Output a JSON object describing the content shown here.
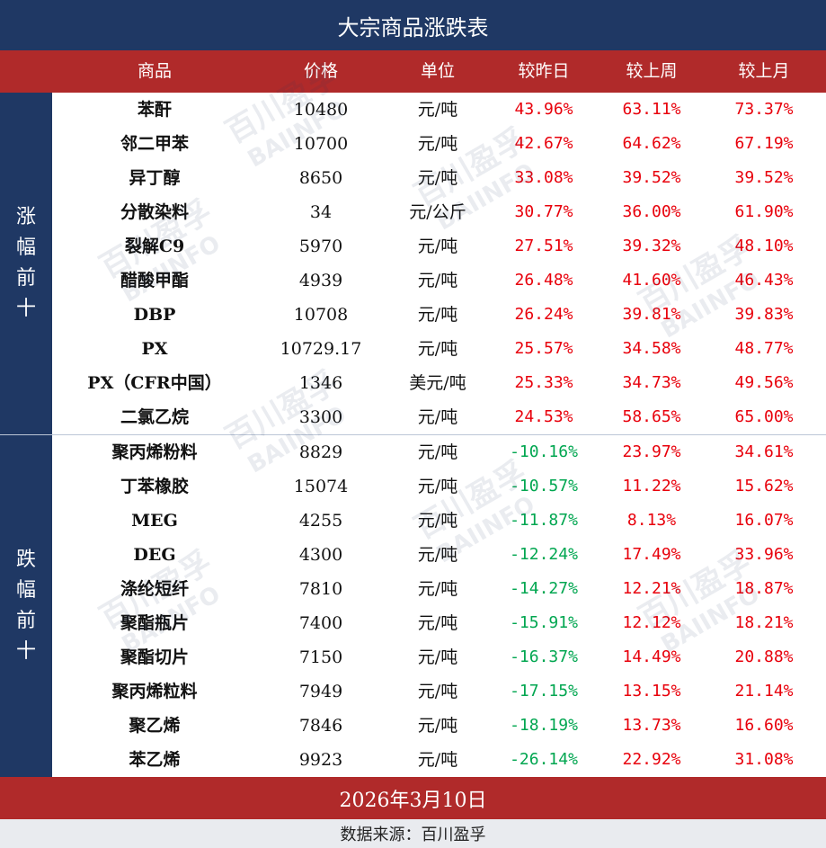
{
  "title": "大宗商品涨跌表",
  "columns": [
    "商品",
    "价格",
    "单位",
    "较昨日",
    "较上周",
    "较上月"
  ],
  "sections": [
    {
      "label": "涨幅前十",
      "rows": [
        {
          "name": "苯酐",
          "price": "10480",
          "unit": "元/吨",
          "day": "43.96%",
          "week": "63.11%",
          "month": "73.37%"
        },
        {
          "name": "邻二甲苯",
          "price": "10700",
          "unit": "元/吨",
          "day": "42.67%",
          "week": "64.62%",
          "month": "67.19%"
        },
        {
          "name": "异丁醇",
          "price": "8650",
          "unit": "元/吨",
          "day": "33.08%",
          "week": "39.52%",
          "month": "39.52%"
        },
        {
          "name": "分散染料",
          "price": "34",
          "unit": "元/公斤",
          "day": "30.77%",
          "week": "36.00%",
          "month": "61.90%"
        },
        {
          "name": "裂解C9",
          "price": "5970",
          "unit": "元/吨",
          "day": "27.51%",
          "week": "39.32%",
          "month": "48.10%"
        },
        {
          "name": "醋酸甲酯",
          "price": "4939",
          "unit": "元/吨",
          "day": "26.48%",
          "week": "41.60%",
          "month": "46.43%"
        },
        {
          "name": "DBP",
          "price": "10708",
          "unit": "元/吨",
          "day": "26.24%",
          "week": "39.81%",
          "month": "39.83%"
        },
        {
          "name": "PX",
          "price": "10729.17",
          "unit": "元/吨",
          "day": "25.57%",
          "week": "34.58%",
          "month": "48.77%"
        },
        {
          "name": "PX（CFR中国）",
          "price": "1346",
          "unit": "美元/吨",
          "day": "25.33%",
          "week": "34.73%",
          "month": "49.56%"
        },
        {
          "name": "二氯乙烷",
          "price": "3300",
          "unit": "元/吨",
          "day": "24.53%",
          "week": "58.65%",
          "month": "65.00%"
        }
      ]
    },
    {
      "label": "跌幅前十",
      "rows": [
        {
          "name": "聚丙烯粉料",
          "price": "8829",
          "unit": "元/吨",
          "day": "-10.16%",
          "week": "23.97%",
          "month": "34.61%"
        },
        {
          "name": "丁苯橡胶",
          "price": "15074",
          "unit": "元/吨",
          "day": "-10.57%",
          "week": "11.22%",
          "month": "15.62%"
        },
        {
          "name": "MEG",
          "price": "4255",
          "unit": "元/吨",
          "day": "-11.87%",
          "week": "8.13%",
          "month": "16.07%"
        },
        {
          "name": "DEG",
          "price": "4300",
          "unit": "元/吨",
          "day": "-12.24%",
          "week": "17.49%",
          "month": "33.96%"
        },
        {
          "name": "涤纶短纤",
          "price": "7810",
          "unit": "元/吨",
          "day": "-14.27%",
          "week": "12.21%",
          "month": "18.87%"
        },
        {
          "name": "聚酯瓶片",
          "price": "7400",
          "unit": "元/吨",
          "day": "-15.91%",
          "week": "12.12%",
          "month": "18.21%"
        },
        {
          "name": "聚酯切片",
          "price": "7150",
          "unit": "元/吨",
          "day": "-16.37%",
          "week": "14.49%",
          "month": "20.88%"
        },
        {
          "name": "聚丙烯粒料",
          "price": "7949",
          "unit": "元/吨",
          "day": "-17.15%",
          "week": "13.15%",
          "month": "21.14%"
        },
        {
          "name": "聚乙烯",
          "price": "7846",
          "unit": "元/吨",
          "day": "-18.19%",
          "week": "13.73%",
          "month": "16.60%"
        },
        {
          "name": "苯乙烯",
          "price": "9923",
          "unit": "元/吨",
          "day": "-26.14%",
          "week": "22.92%",
          "month": "31.08%"
        }
      ]
    }
  ],
  "date": "2026年3月10日",
  "source": "数据来源：百川盈孚",
  "watermark": {
    "cn": "百川盈孚",
    "en": "BAIINFO"
  },
  "colors": {
    "navy": "#1f3864",
    "header_red": "#b02a2a",
    "up": "#e8000b",
    "down": "#00a650"
  }
}
